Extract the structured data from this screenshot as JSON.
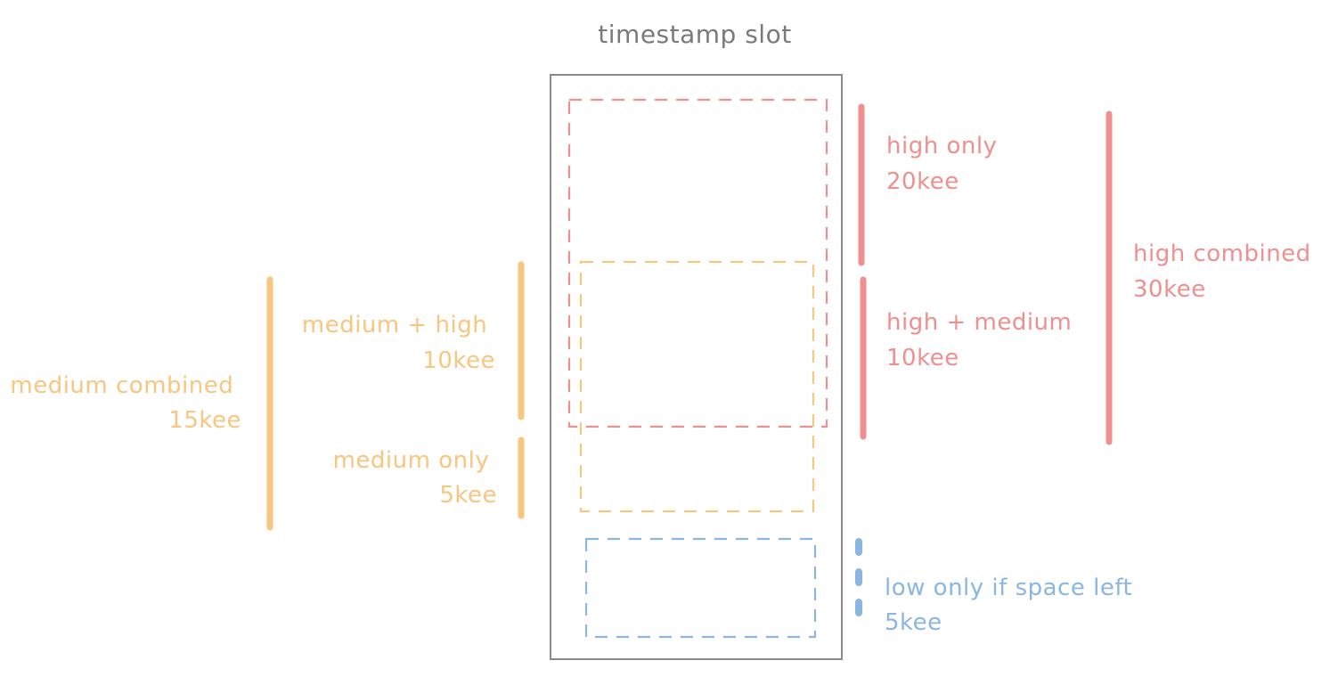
{
  "title": "timestamp slot",
  "colors": {
    "slot_border": "#8a8a8a",
    "title": "#7a7a7a",
    "high": "#f08f8f",
    "medium": "#f7c67f",
    "low": "#8ab6e0"
  },
  "labels": {
    "high_only": {
      "line1": "high only",
      "line2": "20kee"
    },
    "high_medium": {
      "line1": "high + medium",
      "line2": "10kee"
    },
    "high_combined": {
      "line1": "high combined",
      "line2": "30kee"
    },
    "medium_high": {
      "line1": "medium + high",
      "line2": "10kee"
    },
    "medium_only": {
      "line1": "medium only",
      "line2": "5kee"
    },
    "medium_combined": {
      "line1": "medium combined",
      "line2": "15kee"
    },
    "low_only": {
      "line1": "low only if space left",
      "line2": "5kee"
    }
  }
}
